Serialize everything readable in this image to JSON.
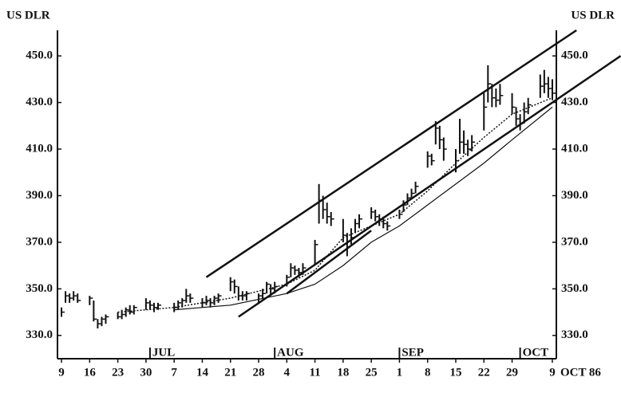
{
  "chart_data": {
    "type": "ohlc",
    "y_axis_label": "US DLR",
    "y2_axis_label": "US DLR",
    "x_unit_label": "OCT 86",
    "color": "#111111",
    "xlim": [
      "1986-06-08",
      "1986-10-10"
    ],
    "ylim": [
      320,
      461
    ],
    "yticks": [
      {
        "value": 330,
        "label": "330.0"
      },
      {
        "value": 350,
        "label": "350.0"
      },
      {
        "value": 370,
        "label": "370.0"
      },
      {
        "value": 390,
        "label": "390.0"
      },
      {
        "value": 410,
        "label": "410.0"
      },
      {
        "value": 430,
        "label": "430.0"
      },
      {
        "value": 450,
        "label": "450.0"
      }
    ],
    "xticks": [
      {
        "value": "1986-06-09",
        "label": "9"
      },
      {
        "value": "1986-06-16",
        "label": "16"
      },
      {
        "value": "1986-06-23",
        "label": "23"
      },
      {
        "value": "1986-06-30",
        "label": "30"
      },
      {
        "value": "1986-07-07",
        "label": "7"
      },
      {
        "value": "1986-07-14",
        "label": "14"
      },
      {
        "value": "1986-07-21",
        "label": "21"
      },
      {
        "value": "1986-07-28",
        "label": "28"
      },
      {
        "value": "1986-08-04",
        "label": "4"
      },
      {
        "value": "1986-08-11",
        "label": "11"
      },
      {
        "value": "1986-08-18",
        "label": "18"
      },
      {
        "value": "1986-08-25",
        "label": "25"
      },
      {
        "value": "1986-09-01",
        "label": "1"
      },
      {
        "value": "1986-09-08",
        "label": "8"
      },
      {
        "value": "1986-09-15",
        "label": "15"
      },
      {
        "value": "1986-09-22",
        "label": "22"
      },
      {
        "value": "1986-09-29",
        "label": "29"
      },
      {
        "value": "1986-10-09",
        "label": "9"
      }
    ],
    "month_markers": [
      {
        "x": "1986-07-01",
        "label": "JUL"
      },
      {
        "x": "1986-08-01",
        "label": "AUG"
      },
      {
        "x": "1986-09-01",
        "label": "SEP"
      },
      {
        "x": "1986-10-01",
        "label": "OCT"
      }
    ],
    "x": [
      "1986-06-09",
      "1986-06-10",
      "1986-06-11",
      "1986-06-12",
      "1986-06-13",
      "1986-06-16",
      "1986-06-17",
      "1986-06-18",
      "1986-06-19",
      "1986-06-20",
      "1986-06-23",
      "1986-06-24",
      "1986-06-25",
      "1986-06-26",
      "1986-06-27",
      "1986-06-30",
      "1986-07-01",
      "1986-07-02",
      "1986-07-03",
      "1986-07-07",
      "1986-07-08",
      "1986-07-09",
      "1986-07-10",
      "1986-07-11",
      "1986-07-14",
      "1986-07-15",
      "1986-07-16",
      "1986-07-17",
      "1986-07-18",
      "1986-07-21",
      "1986-07-22",
      "1986-07-23",
      "1986-07-24",
      "1986-07-25",
      "1986-07-28",
      "1986-07-29",
      "1986-07-30",
      "1986-07-31",
      "1986-08-01",
      "1986-08-04",
      "1986-08-05",
      "1986-08-06",
      "1986-08-07",
      "1986-08-08",
      "1986-08-11",
      "1986-08-12",
      "1986-08-13",
      "1986-08-14",
      "1986-08-15",
      "1986-08-18",
      "1986-08-19",
      "1986-08-20",
      "1986-08-21",
      "1986-08-22",
      "1986-08-25",
      "1986-08-26",
      "1986-08-27",
      "1986-08-28",
      "1986-08-29",
      "1986-09-01",
      "1986-09-02",
      "1986-09-03",
      "1986-09-04",
      "1986-09-05",
      "1986-09-08",
      "1986-09-09",
      "1986-09-10",
      "1986-09-11",
      "1986-09-12",
      "1986-09-15",
      "1986-09-16",
      "1986-09-17",
      "1986-09-18",
      "1986-09-19",
      "1986-09-22",
      "1986-09-23",
      "1986-09-24",
      "1986-09-25",
      "1986-09-26",
      "1986-09-29",
      "1986-09-30",
      "1986-10-01",
      "1986-10-02",
      "1986-10-03",
      "1986-10-06",
      "1986-10-07",
      "1986-10-08",
      "1986-10-09"
    ],
    "high": [
      342,
      349,
      348,
      349,
      348,
      347,
      345,
      337,
      338,
      339,
      340,
      341,
      342,
      343,
      343,
      346,
      345,
      344,
      344,
      344,
      345,
      346,
      350,
      348,
      346,
      347,
      346,
      347,
      348,
      355,
      354,
      351,
      349,
      349,
      348,
      350,
      353,
      352,
      353,
      356,
      361,
      360,
      359,
      361,
      371,
      395,
      390,
      387,
      383,
      380,
      374,
      376,
      380,
      382,
      385,
      384,
      382,
      381,
      379,
      384,
      388,
      391,
      393,
      396,
      409,
      408,
      422,
      420,
      415,
      410,
      423,
      418,
      414,
      416,
      434,
      446,
      438,
      436,
      438,
      434,
      428,
      425,
      430,
      432,
      442,
      444,
      441,
      440
    ],
    "low": [
      338,
      344,
      344,
      345,
      344,
      343,
      336,
      333,
      334,
      335,
      337,
      337,
      338,
      339,
      339,
      341,
      341,
      340,
      341,
      340,
      341,
      342,
      344,
      344,
      342,
      343,
      342,
      343,
      344,
      349,
      348,
      345,
      345,
      345,
      344,
      346,
      348,
      347,
      348,
      351,
      355,
      356,
      355,
      356,
      360,
      378,
      380,
      378,
      377,
      370,
      364,
      369,
      374,
      376,
      380,
      379,
      377,
      376,
      375,
      380,
      383,
      386,
      389,
      391,
      402,
      403,
      412,
      410,
      405,
      400,
      408,
      408,
      407,
      409,
      418,
      430,
      428,
      428,
      429,
      425,
      420,
      418,
      421,
      425,
      432,
      434,
      432,
      431
    ],
    "close": [
      340,
      347,
      346,
      347,
      345,
      346,
      337,
      335,
      337,
      338,
      338,
      339,
      341,
      340,
      342,
      344,
      343,
      342,
      343,
      342,
      344,
      345,
      347,
      346,
      344,
      345,
      344,
      346,
      347,
      353,
      351,
      347,
      347,
      348,
      347,
      348,
      352,
      350,
      351,
      355,
      359,
      358,
      357,
      359,
      369,
      388,
      384,
      381,
      380,
      373,
      368,
      372,
      378,
      380,
      383,
      381,
      380,
      378,
      377,
      382,
      386,
      389,
      391,
      394,
      407,
      405,
      419,
      414,
      410,
      405,
      413,
      412,
      410,
      413,
      428,
      438,
      432,
      431,
      433,
      428,
      423,
      421,
      426,
      429,
      437,
      438,
      436,
      434
    ],
    "moving_averages": [
      {
        "style": "dotted",
        "x": [
          "1986-06-23",
          "1986-07-07",
          "1986-07-21",
          "1986-08-04",
          "1986-08-11",
          "1986-08-18",
          "1986-08-25",
          "1986-09-01",
          "1986-09-08",
          "1986-09-15",
          "1986-09-22",
          "1986-09-29",
          "1986-10-09"
        ],
        "values": [
          340,
          342,
          346,
          352,
          358,
          372,
          377,
          382,
          392,
          404,
          415,
          425,
          432
        ]
      },
      {
        "style": "solid",
        "x": [
          "1986-07-07",
          "1986-07-21",
          "1986-08-04",
          "1986-08-11",
          "1986-08-18",
          "1986-08-25",
          "1986-09-01",
          "1986-09-08",
          "1986-09-15",
          "1986-09-22",
          "1986-09-29",
          "1986-10-09"
        ],
        "values": [
          341,
          343,
          348,
          352,
          360,
          370,
          377,
          386,
          395,
          404,
          414,
          428
        ]
      }
    ],
    "trend_lines": [
      {
        "x": [
          "1986-07-15",
          "1986-10-15"
        ],
        "values": [
          355,
          461
        ]
      },
      {
        "x": [
          "1986-07-23",
          "1986-10-26"
        ],
        "values": [
          338,
          450
        ]
      },
      {
        "x": [
          "1986-08-04",
          "1986-08-25"
        ],
        "values": [
          348,
          375
        ]
      }
    ]
  }
}
